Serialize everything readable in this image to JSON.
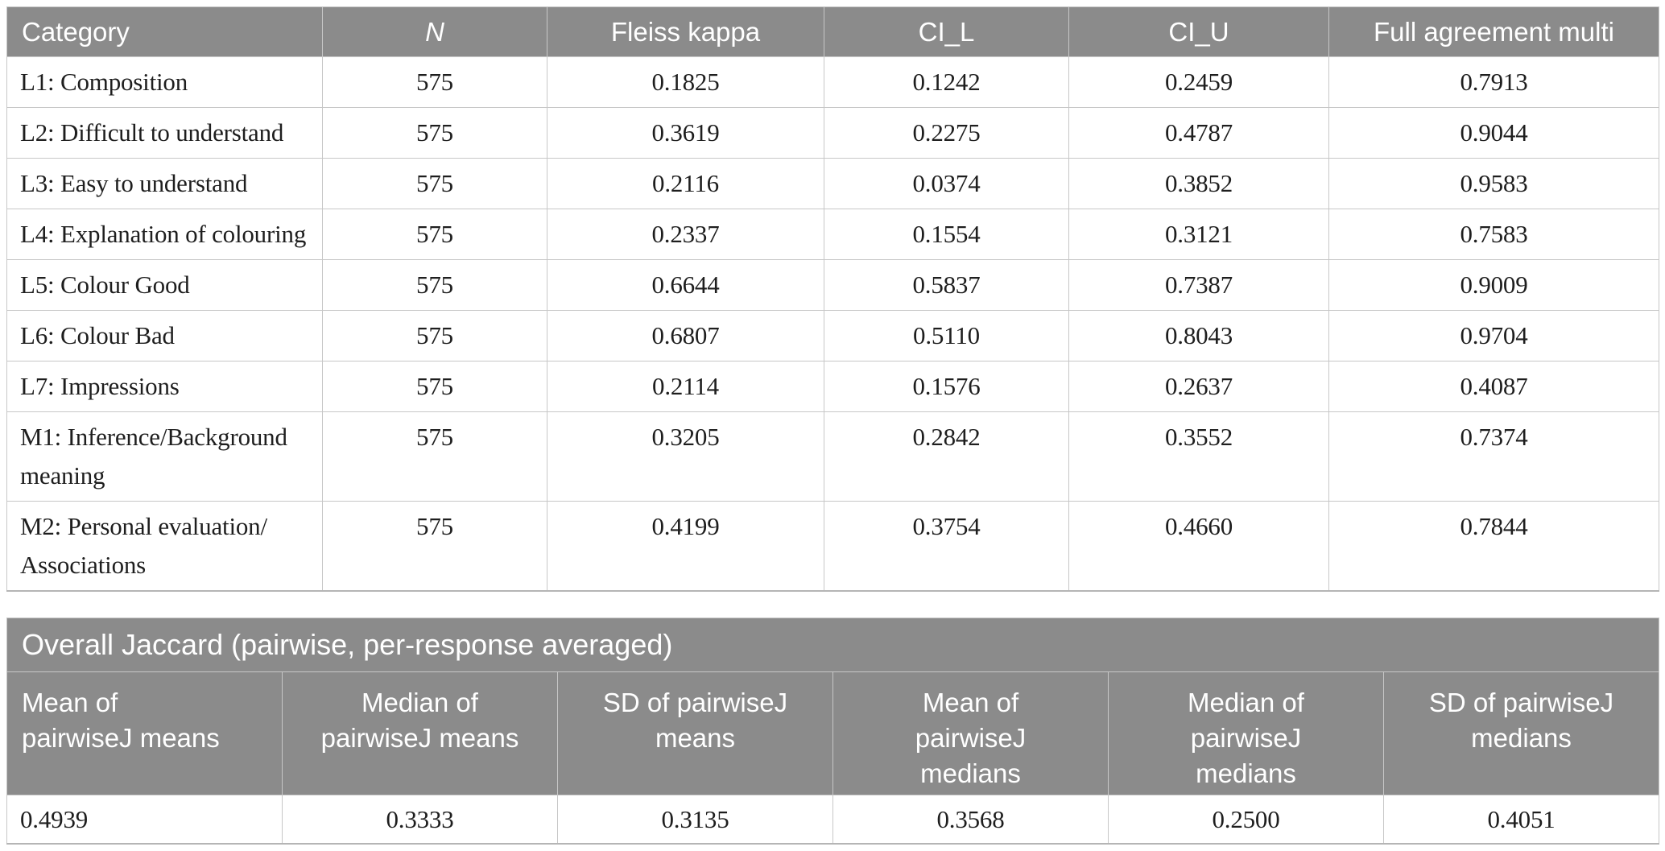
{
  "colors": {
    "header_bg": "#8b8b8b",
    "header_text": "#ffffff",
    "body_text": "#1e1e1e",
    "border": "#c7c7c7",
    "bottom_border": "#b5b5b5",
    "page_bg": "#ffffff"
  },
  "table1": {
    "headers": [
      "Category",
      "N",
      "Fleiss kappa",
      "CI_L",
      "CI_U",
      "Full agreement multi"
    ],
    "rows": [
      [
        "L1: Composition",
        "575",
        "0.1825",
        "0.1242",
        "0.2459",
        "0.7913"
      ],
      [
        "L2: Difficult to understand",
        "575",
        "0.3619",
        "0.2275",
        "0.4787",
        "0.9044"
      ],
      [
        "L3: Easy to understand",
        "575",
        "0.2116",
        "0.0374",
        "0.3852",
        "0.9583"
      ],
      [
        "L4: Explanation of colouring",
        "575",
        "0.2337",
        "0.1554",
        "0.3121",
        "0.7583"
      ],
      [
        "L5: Colour Good",
        "575",
        "0.6644",
        "0.5837",
        "0.7387",
        "0.9009"
      ],
      [
        "L6: Colour Bad",
        "575",
        "0.6807",
        "0.5110",
        "0.8043",
        "0.9704"
      ],
      [
        "L7: Impressions",
        "575",
        "0.2114",
        "0.1576",
        "0.2637",
        "0.4087"
      ],
      [
        "M1: Inference/Background\nmeaning",
        "575",
        "0.3205",
        "0.2842",
        "0.3552",
        "0.7374"
      ],
      [
        "M2: Personal evaluation/\nAssociations",
        "575",
        "0.4199",
        "0.3754",
        "0.4660",
        "0.7844"
      ]
    ]
  },
  "table2": {
    "title": "Overall Jaccard (pairwise, per-response averaged)",
    "headers": [
      "Mean of\npairwiseJ means",
      "Median of\npairwiseJ means",
      "SD of pairwiseJ\nmeans",
      "Mean of\npairwiseJ\nmedians",
      "Median of\npairwiseJ\nmedians",
      "SD of pairwiseJ\nmedians"
    ],
    "values": [
      "0.4939",
      "0.3333",
      "0.3135",
      "0.3568",
      "0.2500",
      "0.4051"
    ]
  }
}
